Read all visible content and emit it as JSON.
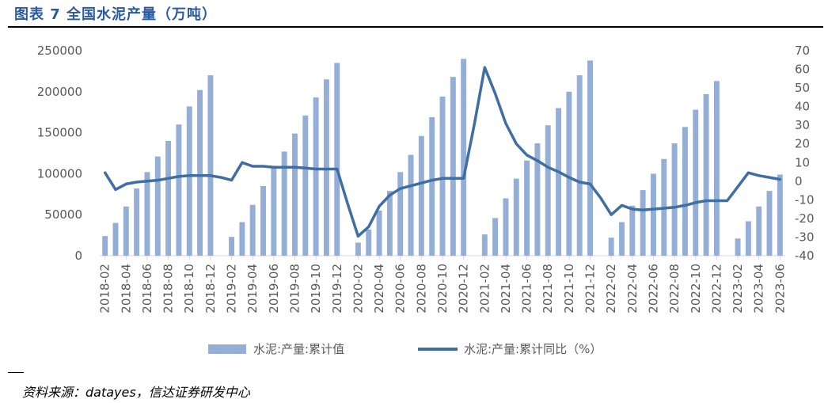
{
  "title": "图表 7 全国水泥产量（万吨）",
  "source": "资料来源：datayes，信达证券研发中心",
  "colors": {
    "bar": "#94aed6",
    "line": "#3f6ea3",
    "title": "#2b5aa0",
    "axis": "#d9d9d9",
    "text": "#595959"
  },
  "chart_data": {
    "type": "bar",
    "title": "图表 7 全国水泥产量（万吨）",
    "categories": [
      "2018-02",
      "2018-03",
      "2018-04",
      "2018-05",
      "2018-06",
      "2018-07",
      "2018-08",
      "2018-09",
      "2018-10",
      "2018-11",
      "2018-12",
      "2019-01",
      "2019-02",
      "2019-03",
      "2019-04",
      "2019-05",
      "2019-06",
      "2019-07",
      "2019-08",
      "2019-09",
      "2019-10",
      "2019-11",
      "2019-12",
      "2020-01",
      "2020-02",
      "2020-03",
      "2020-04",
      "2020-05",
      "2020-06",
      "2020-07",
      "2020-08",
      "2020-09",
      "2020-10",
      "2020-11",
      "2020-12",
      "2021-01",
      "2021-02",
      "2021-03",
      "2021-04",
      "2021-05",
      "2021-06",
      "2021-07",
      "2021-08",
      "2021-09",
      "2021-10",
      "2021-11",
      "2021-12",
      "2022-01",
      "2022-02",
      "2022-03",
      "2022-04",
      "2022-05",
      "2022-06",
      "2022-07",
      "2022-08",
      "2022-09",
      "2022-10",
      "2022-11",
      "2022-12",
      "2023-01",
      "2023-02",
      "2023-03",
      "2023-04",
      "2023-05",
      "2023-06"
    ],
    "x_tick_labels": [
      "2018-02",
      "2018-04",
      "2018-06",
      "2018-08",
      "2018-10",
      "2018-12",
      "2019-02",
      "2019-04",
      "2019-06",
      "2019-08",
      "2019-10",
      "2019-12",
      "2020-02",
      "2020-04",
      "2020-06",
      "2020-08",
      "2020-10",
      "2020-12",
      "2021-02",
      "2021-04",
      "2021-06",
      "2021-08",
      "2021-10",
      "2021-12",
      "2022-02",
      "2022-04",
      "2022-06",
      "2022-08",
      "2022-10",
      "2022-12",
      "2023-02",
      "2023-04",
      "2023-06"
    ],
    "ylim_left": [
      0,
      250000
    ],
    "yticks_left": [
      "0",
      "50000",
      "100000",
      "150000",
      "200000",
      "250000"
    ],
    "ylim_right": [
      -40,
      70
    ],
    "yticks_right": [
      "-40",
      "-30",
      "-20",
      "-10",
      "0",
      "10",
      "20",
      "30",
      "40",
      "50",
      "60",
      "70"
    ],
    "series": [
      {
        "name": "水泥:产量:累计值",
        "type": "bar",
        "axis": "left",
        "values": [
          24000,
          40000,
          60000,
          82000,
          102000,
          121000,
          140000,
          160000,
          182000,
          202000,
          220000,
          null,
          23000,
          41000,
          62000,
          85000,
          107000,
          127000,
          149000,
          171000,
          193000,
          215000,
          235000,
          null,
          16000,
          32000,
          55000,
          79000,
          102000,
          123000,
          146000,
          169000,
          194000,
          218000,
          240000,
          null,
          26000,
          46000,
          70000,
          94000,
          116000,
          137000,
          159000,
          180000,
          200000,
          220000,
          238000,
          null,
          22000,
          41000,
          61000,
          80000,
          100000,
          118000,
          137000,
          157000,
          178000,
          197000,
          213000,
          null,
          21000,
          42000,
          60000,
          79000,
          99000
        ]
      },
      {
        "name": "水泥:产量:累计同比（%）",
        "type": "line",
        "axis": "right",
        "values": [
          4.5,
          -4.5,
          -1.5,
          -0.5,
          0,
          0.5,
          1.5,
          2.5,
          3,
          3,
          3,
          2,
          0.5,
          10,
          8,
          8,
          7.5,
          7.5,
          7.5,
          7,
          6.5,
          6.5,
          6.5,
          -12,
          -29.5,
          -24.5,
          -13.5,
          -7.5,
          -4,
          -2.5,
          -1,
          0.5,
          1.5,
          1.5,
          1.5,
          30,
          61,
          47,
          31,
          20,
          14,
          11,
          7.5,
          5,
          2,
          -0.5,
          -1.5,
          -9,
          -18,
          -13,
          -15,
          -15.5,
          -15,
          -14.5,
          -14,
          -13,
          -11.5,
          -10.5,
          -10.5,
          -10.5,
          -3,
          4.5,
          3,
          2,
          1
        ]
      }
    ],
    "legend": [
      "水泥:产量:累计值",
      "水泥:产量:累计同比（%）"
    ],
    "legend_position": "bottom",
    "grid": false
  }
}
